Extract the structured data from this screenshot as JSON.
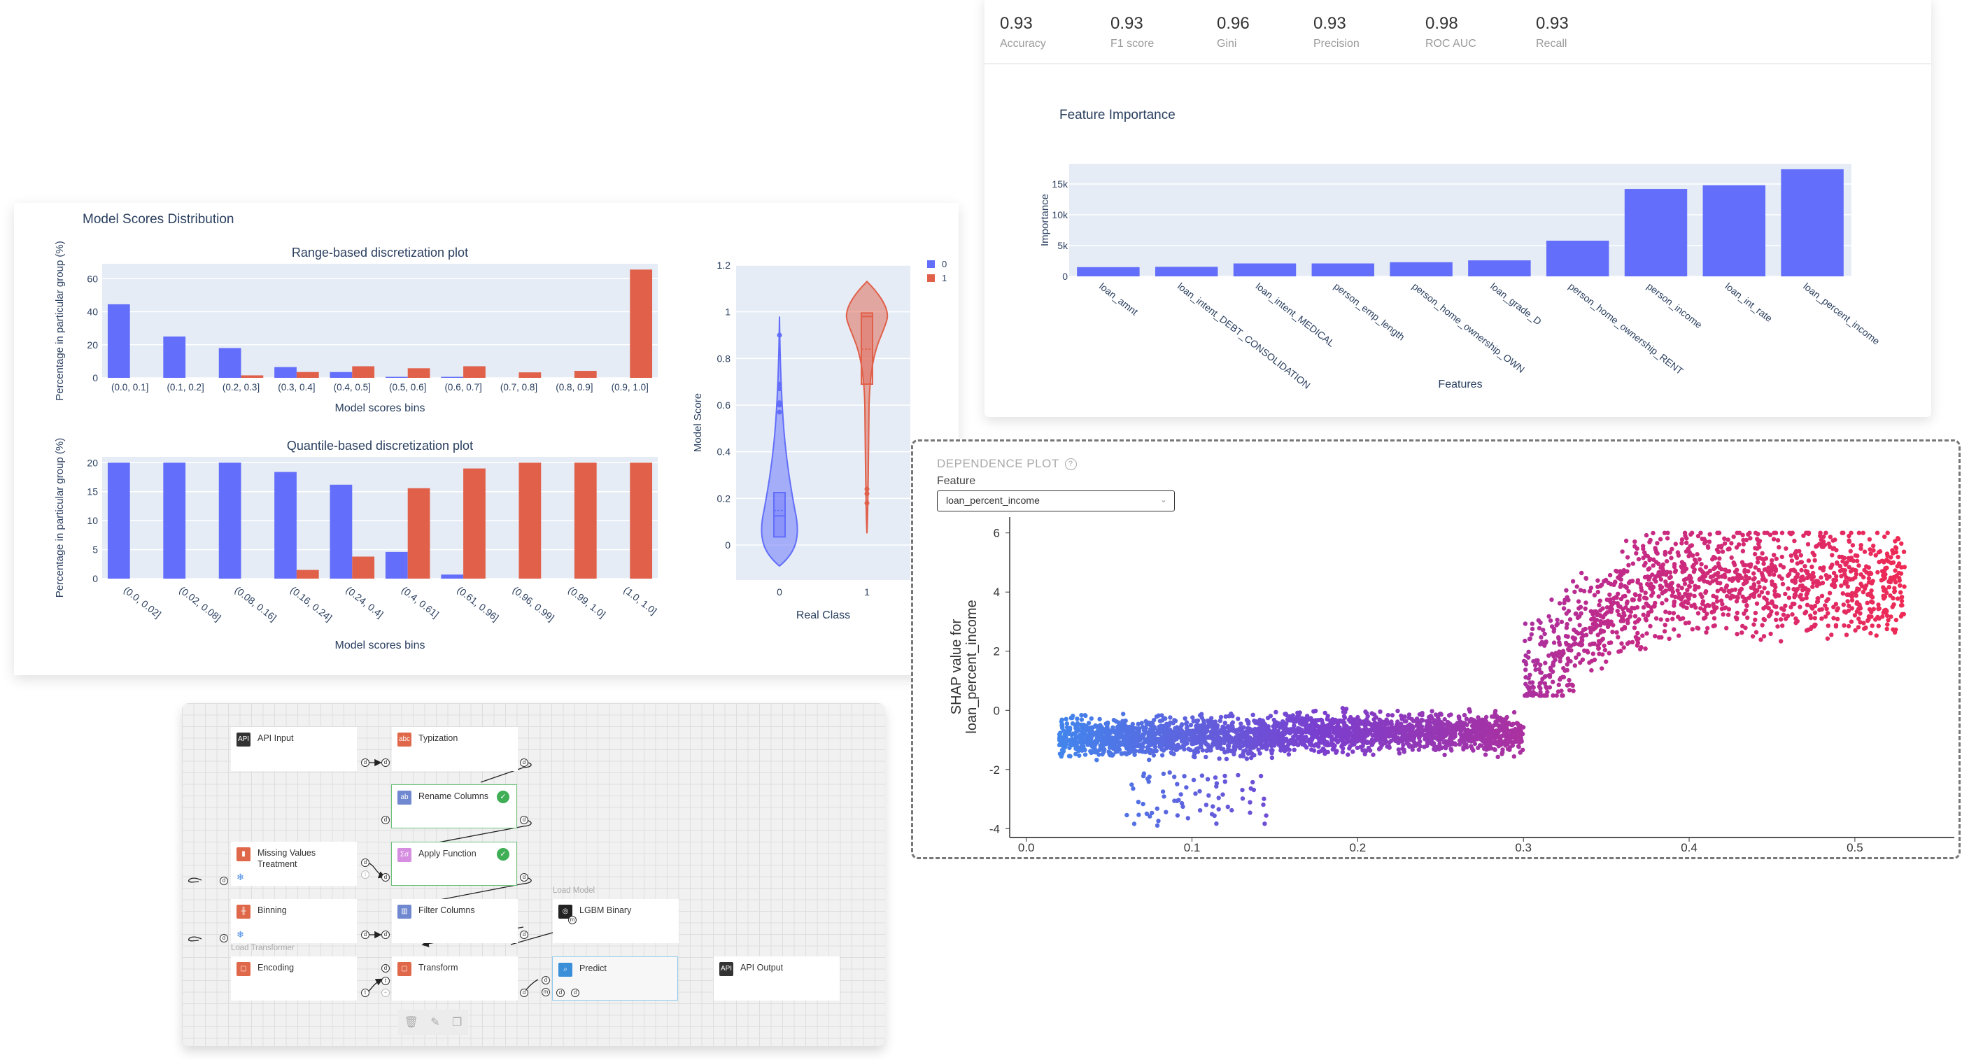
{
  "metrics": [
    {
      "value": "0.93",
      "label": "Accuracy"
    },
    {
      "value": "0.93",
      "label": "F1 score"
    },
    {
      "value": "0.96",
      "label": "Gini"
    },
    {
      "value": "0.93",
      "label": "Precision"
    },
    {
      "value": "0.98",
      "label": "ROC AUC"
    },
    {
      "value": "0.93",
      "label": "Recall"
    }
  ],
  "scores_card": {
    "title": "Model Scores Distribution"
  },
  "dependence": {
    "section_title": "DEPENDENCE PLOT",
    "help_icon": "?",
    "feature_label": "Feature",
    "feature_value": "loan_percent_income"
  },
  "colors": {
    "class0": "#636efa",
    "class1": "#e0604a",
    "plot_bg": "#e5ecf6",
    "text": "#2a3f5f"
  },
  "chart_data": [
    {
      "type": "bar",
      "title": "Range-based discretization plot",
      "xlabel": "Model scores bins",
      "ylabel": "Percentage in particular group (%)",
      "categories": [
        "(0.0, 0.1]",
        "(0.1, 0.2]",
        "(0.2, 0.3]",
        "(0.3, 0.4]",
        "(0.4, 0.5]",
        "(0.5, 0.6]",
        "(0.6, 0.7]",
        "(0.7, 0.8]",
        "(0.8, 0.9]",
        "(0.9, 1.0]"
      ],
      "series": [
        {
          "name": "0",
          "values": [
            44.5,
            25,
            18,
            6.5,
            3.5,
            0.6,
            0.6,
            0,
            0,
            0
          ]
        },
        {
          "name": "1",
          "values": [
            0,
            0,
            1.5,
            3.5,
            7,
            5.8,
            7,
            3.3,
            4.2,
            65.5
          ]
        }
      ],
      "yticks": [
        0,
        20,
        40,
        60
      ],
      "ylim": [
        0,
        69
      ]
    },
    {
      "type": "bar",
      "title": "Quantile-based discretization plot",
      "xlabel": "Model scores bins",
      "ylabel": "Percentage in particular group (%)",
      "categories": [
        "(0.0, 0.02]",
        "(0.02, 0.08]",
        "(0.08, 0.16]",
        "(0.16, 0.24]",
        "(0.24, 0.4]",
        "(0.4, 0.61]",
        "(0.61, 0.96]",
        "(0.96, 0.99]",
        "(0.99, 1.0]",
        "(1.0, 1.0]"
      ],
      "series": [
        {
          "name": "0",
          "values": [
            20,
            20,
            20,
            18.4,
            16.2,
            4.6,
            0.7,
            0,
            0,
            0
          ]
        },
        {
          "name": "1",
          "values": [
            0,
            0,
            0,
            1.5,
            3.8,
            15.6,
            19,
            20,
            20,
            20
          ]
        }
      ],
      "yticks": [
        0,
        5,
        10,
        15,
        20
      ],
      "ylim": [
        0,
        21
      ]
    },
    {
      "type": "violin",
      "title": "",
      "xlabel": "Real Class",
      "ylabel": "Model Score",
      "categories": [
        "0",
        "1"
      ],
      "series": [
        {
          "name": "0",
          "q1": 0.035,
          "median": 0.125,
          "mean": 0.148,
          "q3": 0.225,
          "min": 0.0,
          "max": 0.98,
          "outliers": [
            0.9,
            0.69,
            0.67,
            0.61,
            0.6,
            0.57
          ]
        },
        {
          "name": "1",
          "q1": 0.69,
          "median": 0.98,
          "mean": 0.84,
          "q3": 0.995,
          "min": 0.05,
          "max": 1.0,
          "outliers": [
            0.24,
            0.22,
            0.18
          ]
        }
      ],
      "yticks": [
        0,
        0.2,
        0.4,
        0.6,
        0.8,
        1,
        1.2
      ],
      "ylim": [
        -0.15,
        1.2
      ],
      "legend": [
        "0",
        "1"
      ]
    },
    {
      "type": "bar",
      "title": "Feature Importance",
      "xlabel": "Features",
      "ylabel": "Importance",
      "categories": [
        "loan_amnt",
        "loan_intent_DEBT_CONSOLIDATION",
        "loan_intent_MEDICAL",
        "person_emp_length",
        "person_home_ownership_OWN",
        "loan_grade_D",
        "person_home_ownership_RENT",
        "person_income",
        "loan_int_rate",
        "loan_percent_income"
      ],
      "values": [
        1500,
        1550,
        2100,
        2100,
        2300,
        2600,
        5800,
        14200,
        14800,
        17400
      ],
      "yticks": [
        0,
        5000,
        10000,
        15000
      ],
      "ytick_labels": [
        "0",
        "5k",
        "10k",
        "15k"
      ],
      "ylim": [
        0,
        18300
      ]
    },
    {
      "type": "scatter",
      "title": "",
      "xlabel": "",
      "ylabel": "SHAP value for\nloan_percent_income",
      "xticks": [
        0.0,
        0.1,
        0.2,
        0.3,
        0.4,
        0.5
      ],
      "yticks": [
        -4,
        -2,
        0,
        2,
        4,
        6
      ],
      "xlim": [
        -0.01,
        0.56
      ],
      "ylim": [
        -4.3,
        6.3
      ],
      "clusters": [
        {
          "x_range": [
            0.02,
            0.3
          ],
          "y_range": [
            -1.7,
            0.1
          ],
          "note": "dense band, blue→purple"
        },
        {
          "x_range": [
            0.06,
            0.15
          ],
          "y_range": [
            -3.9,
            -2.1
          ],
          "note": "sparse low outliers, blue"
        },
        {
          "x_range": [
            0.3,
            0.53
          ],
          "y_range": [
            0.5,
            6.0
          ],
          "note": "high band, magenta→red"
        }
      ],
      "colormap": [
        "#3b8ef0",
        "#7a3fcf",
        "#c02a8a",
        "#ee2a55"
      ]
    }
  ],
  "pipeline": {
    "nodes": [
      {
        "id": "api-input",
        "name": "API Input"
      },
      {
        "id": "typization",
        "name": "Typization"
      },
      {
        "id": "rename-columns",
        "name": "Rename Columns",
        "status": "ok"
      },
      {
        "id": "missing-values",
        "name": "Missing Values Treatment"
      },
      {
        "id": "apply-function",
        "name": "Apply Function",
        "status": "ok"
      },
      {
        "id": "binning",
        "name": "Binning"
      },
      {
        "id": "filter-columns",
        "name": "Filter Columns"
      },
      {
        "id": "lgbm-binary",
        "name": "LGBM Binary"
      },
      {
        "id": "encoding",
        "name": "Encoding"
      },
      {
        "id": "transform",
        "name": "Transform"
      },
      {
        "id": "predict",
        "name": "Predict"
      },
      {
        "id": "api-output",
        "name": "API Output"
      }
    ],
    "groups": {
      "load_model": "Load Model",
      "load_transformer": "Load Transformer"
    },
    "ports": {
      "d": "d",
      "t": "t",
      "m": "m",
      "plus": "+"
    },
    "toolbar": {
      "delete": "🗑",
      "edit": "✎",
      "duplicate": "❐"
    }
  }
}
